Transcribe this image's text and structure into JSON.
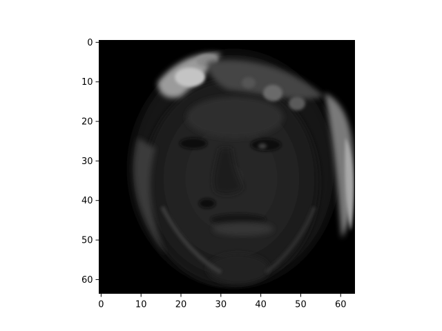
{
  "chart_data": {
    "type": "heatmap",
    "title": "",
    "xlabel": "",
    "ylabel": "",
    "image_shape": [
      64,
      64
    ],
    "colormap": "gray",
    "xlim": [
      -0.5,
      63.5
    ],
    "ylim": [
      63.5,
      -0.5
    ],
    "y_axis_inverted": true,
    "grid": false,
    "legend": "none",
    "xticks": [
      0,
      10,
      20,
      30,
      40,
      50,
      60
    ],
    "yticks": [
      0,
      10,
      20,
      30,
      40,
      50,
      60
    ],
    "image_description_values": "grayscale face image, mostly dark (values near 0) with brighter hair region at upper-left and right edge",
    "colors": {
      "background": "#000000",
      "axes_edge": "#000000",
      "face_mid": "#2e2e2e",
      "face_highlight": "#bdbdbd"
    }
  }
}
